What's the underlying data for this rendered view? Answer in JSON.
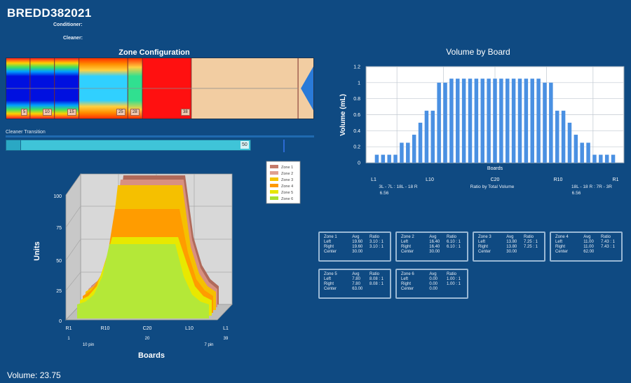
{
  "header": {
    "title": "BREDD382021",
    "conditioner_label": "Conditioner:",
    "cleaner_label": "Cleaner:"
  },
  "zone_config": {
    "title": "Zone Configuration",
    "markers": [
      "5",
      "10",
      "15",
      "25",
      "28",
      "38"
    ]
  },
  "cleaner_transition": {
    "label": "Cleaner Transition",
    "value": "50"
  },
  "volume_by_board": {
    "title": "Volume by Board",
    "ylabel": "Volume (mL)",
    "xlabel": "Boards",
    "yticks": [
      "0",
      "0.2",
      "0.4",
      "0.6",
      "0.8",
      "1",
      "1.2"
    ],
    "xticks": [
      "L1",
      "L10",
      "C20",
      "R10",
      "R1"
    ],
    "left_group": "3L - 7L : 18L - 18 R",
    "left_value": "6.56",
    "mid_label": "Ratio by Total Volume",
    "right_group": "18L - 18 R : 7R - 3R",
    "right_value": "6.56",
    "bar_color": "#4a90e2"
  },
  "units_chart": {
    "ylabel": "Units",
    "xlabel": "Boards",
    "yticks": [
      "0",
      "25",
      "50",
      "75",
      "100"
    ],
    "xticks": [
      "R1",
      "R10",
      "C20",
      "L10",
      "L1"
    ],
    "xnums": [
      "1",
      "10 pin",
      "20",
      "7 pin",
      "39"
    ],
    "legend": [
      {
        "name": "Zone 1",
        "color": "#c47a6a"
      },
      {
        "name": "Zone 2",
        "color": "#e0a090"
      },
      {
        "name": "Zone 3",
        "color": "#f5c400"
      },
      {
        "name": "Zone 4",
        "color": "#ff9900"
      },
      {
        "name": "Zone 5",
        "color": "#e6e600"
      },
      {
        "name": "Zone 6",
        "color": "#a8e030"
      }
    ]
  },
  "zone_boxes": [
    {
      "title": "Zone 1",
      "left_avg": "19.60",
      "left_ratio": "3.10 : 1",
      "right_avg": "19.60",
      "right_ratio": "3.10 : 1",
      "center": "30.00"
    },
    {
      "title": "Zone 2",
      "left_avg": "16.40",
      "left_ratio": "6.10 : 1",
      "right_avg": "16.40",
      "right_ratio": "6.10 : 1",
      "center": "30.00"
    },
    {
      "title": "Zone 3",
      "left_avg": "13.80",
      "left_ratio": "7.25 : 1",
      "right_avg": "13.80",
      "right_ratio": "7.25 : 1",
      "center": "30.00"
    },
    {
      "title": "Zone 4",
      "left_avg": "11.00",
      "left_ratio": "7.43 : 1",
      "right_avg": "11.00",
      "right_ratio": "7.43 : 1",
      "center": "62.00"
    },
    {
      "title": "Zone 5",
      "left_avg": "7.80",
      "left_ratio": "8.08 : 1",
      "right_avg": "7.80",
      "right_ratio": "8.08 : 1",
      "center": "63.00"
    },
    {
      "title": "Zone 6",
      "left_avg": "0.00",
      "left_ratio": "1.00 : 1",
      "right_avg": "0.00",
      "right_ratio": "1.00 : 1",
      "center": "0.00"
    }
  ],
  "box_labels": {
    "avg": "Avg",
    "ratio": "Ratio",
    "left": "Left",
    "right": "Right",
    "center": "Center"
  },
  "footer": {
    "volume_text": "Volume: 23.75"
  },
  "chart_data": {
    "type": "bar",
    "title": "Volume by Board",
    "xlabel": "Boards",
    "ylabel": "Volume (mL)",
    "ylim": [
      0,
      1.2
    ],
    "x": [
      "L1",
      "L2",
      "L3",
      "L4",
      "L5",
      "L6",
      "L7",
      "L8",
      "L9",
      "L10",
      "L11",
      "L12",
      "L13",
      "L14",
      "L15",
      "L16",
      "L17",
      "L18",
      "L19",
      "C20",
      "R19",
      "R18",
      "R17",
      "R16",
      "R15",
      "R14",
      "R13",
      "R12",
      "R11",
      "R10",
      "R9",
      "R8",
      "R7",
      "R6",
      "R5",
      "R4",
      "R3",
      "R2",
      "R1"
    ],
    "values": [
      0.1,
      0.1,
      0.1,
      0.1,
      0.25,
      0.25,
      0.35,
      0.5,
      0.65,
      0.65,
      1.0,
      1.0,
      1.05,
      1.05,
      1.05,
      1.05,
      1.05,
      1.05,
      1.05,
      1.05,
      1.05,
      1.05,
      1.05,
      1.05,
      1.05,
      1.05,
      1.05,
      1.0,
      1.0,
      0.65,
      0.65,
      0.5,
      0.35,
      0.25,
      0.25,
      0.1,
      0.1,
      0.1,
      0.1
    ],
    "grid": true
  }
}
